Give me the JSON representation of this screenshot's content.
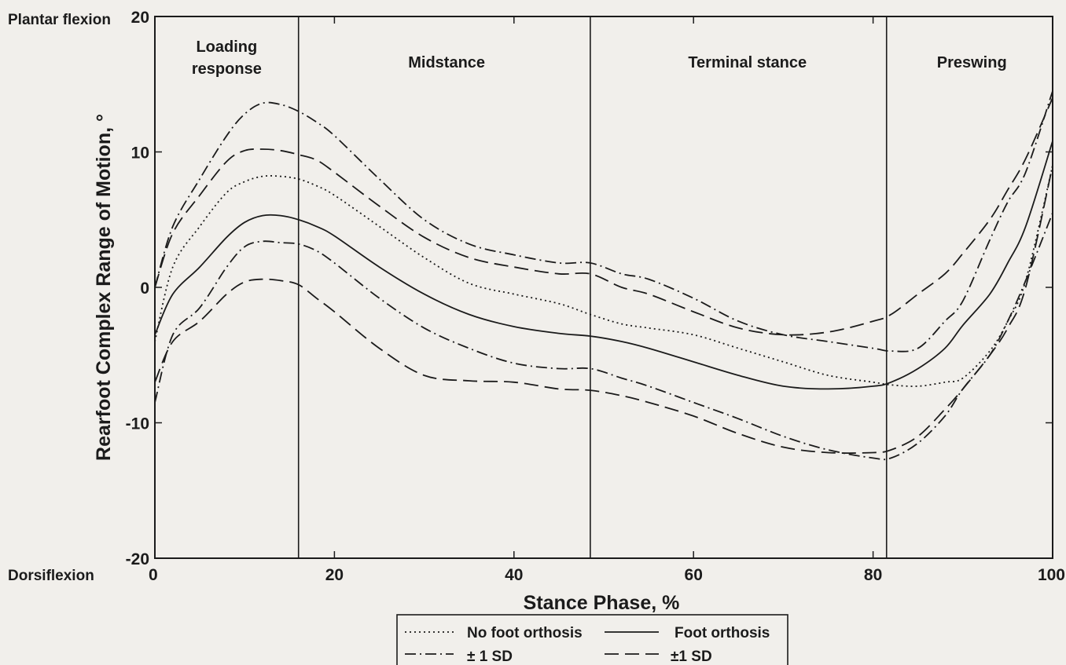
{
  "chart_data": {
    "type": "line",
    "xlabel": "Stance Phase, %",
    "ylabel": "Rearfoot Complex Range of Motion, °",
    "xlim": [
      0,
      100
    ],
    "ylim": [
      -20,
      20
    ],
    "xticks": [
      0,
      20,
      40,
      60,
      80,
      100
    ],
    "yticks": [
      -20,
      -10,
      0,
      10,
      20
    ],
    "y_top_label": "Plantar flexion",
    "y_bottom_label": "Dorsiflexion",
    "grid": false,
    "legend_position": "bottom-center",
    "phase_boundaries": [
      16,
      48.5,
      81.5
    ],
    "phases": [
      {
        "lines": [
          "Loading",
          "response"
        ],
        "center": 8
      },
      {
        "lines": [
          "Midstance"
        ],
        "center": 32.5
      },
      {
        "lines": [
          "Terminal stance"
        ],
        "center": 66
      },
      {
        "lines": [
          "Preswing"
        ],
        "center": 91
      }
    ],
    "x": [
      0,
      2,
      5,
      8,
      10,
      12,
      14,
      16,
      18,
      20,
      25,
      30,
      35,
      40,
      45,
      48.5,
      52,
      55,
      60,
      65,
      70,
      75,
      80,
      82,
      85,
      88,
      90,
      93,
      95,
      97,
      100
    ],
    "series": [
      {
        "key": "no_orthosis",
        "label": "No foot orthosis",
        "style": "dotted",
        "values": [
          -4,
          1.5,
          4.5,
          7,
          7.8,
          8.2,
          8.2,
          8,
          7.5,
          6.8,
          4.5,
          2.2,
          0.3,
          -0.5,
          -1.2,
          -2,
          -2.7,
          -3,
          -3.5,
          -4.5,
          -5.5,
          -6.5,
          -7,
          -7.2,
          -7.3,
          -7,
          -6.7,
          -4.7,
          -2.5,
          0.5,
          9
        ]
      },
      {
        "key": "orthosis",
        "label": "Foot orthosis",
        "style": "solid",
        "values": [
          -3.5,
          -0.5,
          1.5,
          3.7,
          4.8,
          5.3,
          5.3,
          5,
          4.5,
          3.8,
          1.5,
          -0.5,
          -2,
          -2.9,
          -3.4,
          -3.6,
          -4,
          -4.5,
          -5.5,
          -6.5,
          -7.3,
          -7.5,
          -7.3,
          -7,
          -6,
          -4.5,
          -2.8,
          -0.5,
          1.8,
          4.5,
          10.8
        ]
      },
      {
        "key": "no_orthosis_plus_sd",
        "label": "± 1 SD",
        "style": "dashdot",
        "values": [
          0,
          4.5,
          8,
          11.2,
          12.8,
          13.6,
          13.5,
          13,
          12.2,
          11.2,
          8,
          5,
          3.2,
          2.4,
          1.8,
          1.8,
          1,
          0.6,
          -0.8,
          -2.5,
          -3.5,
          -4,
          -4.5,
          -4.7,
          -4.5,
          -2.5,
          -1,
          3.5,
          6.3,
          8.5,
          14.5
        ]
      },
      {
        "key": "no_orthosis_minus_sd",
        "label": "± 1 SD",
        "style": "dashdot",
        "values": [
          -8.5,
          -3.5,
          -1.5,
          1.5,
          3,
          3.4,
          3.3,
          3.2,
          2.7,
          1.8,
          -0.8,
          -3,
          -4.5,
          -5.6,
          -6,
          -6,
          -6.7,
          -7.3,
          -8.5,
          -9.7,
          -11,
          -12,
          -12.6,
          -12.6,
          -11.5,
          -9.5,
          -7.5,
          -5,
          -2.5,
          0.5,
          5.5
        ]
      },
      {
        "key": "orthosis_plus_sd",
        "label": "±1 SD",
        "style": "dashed",
        "values": [
          0,
          4,
          6.8,
          9.3,
          10.1,
          10.2,
          10.1,
          9.8,
          9.4,
          8.5,
          6,
          3.7,
          2.2,
          1.5,
          1,
          1,
          0,
          -0.5,
          -1.8,
          -3,
          -3.5,
          -3.3,
          -2.5,
          -2,
          -0.5,
          1,
          2.5,
          5,
          7.2,
          9.5,
          14
        ]
      },
      {
        "key": "orthosis_minus_sd",
        "label": "±1 SD",
        "style": "dashed",
        "values": [
          -7,
          -4,
          -2.5,
          -0.5,
          0.4,
          0.6,
          0.5,
          0.2,
          -0.8,
          -1.8,
          -4.5,
          -6.5,
          -6.9,
          -7,
          -7.5,
          -7.6,
          -8,
          -8.5,
          -9.5,
          -10.8,
          -11.8,
          -12.2,
          -12.2,
          -12,
          -11,
          -9,
          -7.5,
          -5,
          -3,
          0,
          9
        ]
      }
    ]
  },
  "legend": {
    "no_orthosis": "No foot orthosis",
    "orthosis": "Foot orthosis",
    "no_orthosis_sd": "± 1 SD",
    "orthosis_sd": "±1 SD"
  }
}
